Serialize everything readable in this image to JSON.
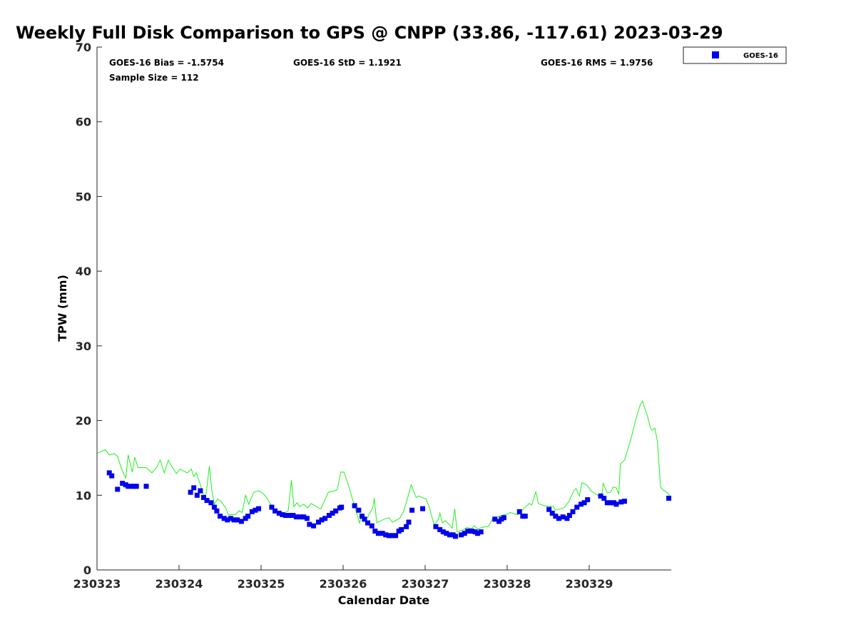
{
  "chart_data": {
    "type": "scatter",
    "title": "Weekly Full Disk Comparison to GPS @ CNPP (33.86, -117.61) 2023-03-29",
    "xlabel": "Calendar Date",
    "ylabel": "TPW (mm)",
    "xlim": [
      0,
      7
    ],
    "ylim": [
      0,
      70
    ],
    "x_unit": "days since 230323",
    "x_ticks": [
      0,
      1,
      2,
      3,
      4,
      5,
      6
    ],
    "x_tick_labels": [
      "230323",
      "230324",
      "230325",
      "230326",
      "230327",
      "230328",
      "230329"
    ],
    "y_ticks": [
      0,
      10,
      20,
      30,
      40,
      50,
      60,
      70
    ],
    "y_tick_labels": [
      "0",
      "10",
      "20",
      "30",
      "40",
      "50",
      "60",
      "70"
    ],
    "grid": false,
    "legend": {
      "position": "top-right-outside",
      "entries": [
        "GOES-16"
      ]
    },
    "stats": {
      "bias": "GOES-16 Bias = -1.5754",
      "std": "GOES-16 StD = 1.1921",
      "rms": "GOES-16 RMS = 1.9756",
      "sample": "Sample Size = 112"
    },
    "series": [
      {
        "name": "GOES-16",
        "type": "scatter",
        "color": "#0000ee",
        "points": [
          [
            0.15,
            13.0
          ],
          [
            0.18,
            12.6
          ],
          [
            0.25,
            10.8
          ],
          [
            0.31,
            11.6
          ],
          [
            0.35,
            11.4
          ],
          [
            0.38,
            11.2
          ],
          [
            0.42,
            11.2
          ],
          [
            0.45,
            11.2
          ],
          [
            0.48,
            11.2
          ],
          [
            0.6,
            11.2
          ],
          [
            1.14,
            10.4
          ],
          [
            1.18,
            11.0
          ],
          [
            1.22,
            10.0
          ],
          [
            1.26,
            10.6
          ],
          [
            1.3,
            9.7
          ],
          [
            1.34,
            9.3
          ],
          [
            1.39,
            9.0
          ],
          [
            1.43,
            8.4
          ],
          [
            1.46,
            7.9
          ],
          [
            1.5,
            7.2
          ],
          [
            1.55,
            6.9
          ],
          [
            1.59,
            6.7
          ],
          [
            1.63,
            6.9
          ],
          [
            1.67,
            6.7
          ],
          [
            1.71,
            6.7
          ],
          [
            1.76,
            6.5
          ],
          [
            1.81,
            6.9
          ],
          [
            1.84,
            7.2
          ],
          [
            1.89,
            7.8
          ],
          [
            1.93,
            8.0
          ],
          [
            1.97,
            8.2
          ],
          [
            2.13,
            8.4
          ],
          [
            2.17,
            7.9
          ],
          [
            2.22,
            7.6
          ],
          [
            2.26,
            7.4
          ],
          [
            2.3,
            7.3
          ],
          [
            2.35,
            7.3
          ],
          [
            2.39,
            7.3
          ],
          [
            2.43,
            7.1
          ],
          [
            2.48,
            7.1
          ],
          [
            2.52,
            7.1
          ],
          [
            2.56,
            6.9
          ],
          [
            2.59,
            6.1
          ],
          [
            2.64,
            5.9
          ],
          [
            2.7,
            6.4
          ],
          [
            2.74,
            6.7
          ],
          [
            2.78,
            6.9
          ],
          [
            2.83,
            7.3
          ],
          [
            2.87,
            7.6
          ],
          [
            2.91,
            7.9
          ],
          [
            2.96,
            8.3
          ],
          [
            2.98,
            8.4
          ],
          [
            3.14,
            8.6
          ],
          [
            3.19,
            8.0
          ],
          [
            3.23,
            7.2
          ],
          [
            3.26,
            6.8
          ],
          [
            3.3,
            6.3
          ],
          [
            3.35,
            5.9
          ],
          [
            3.39,
            5.2
          ],
          [
            3.43,
            4.9
          ],
          [
            3.48,
            4.9
          ],
          [
            3.52,
            4.7
          ],
          [
            3.56,
            4.6
          ],
          [
            3.6,
            4.6
          ],
          [
            3.64,
            4.6
          ],
          [
            3.68,
            5.2
          ],
          [
            3.71,
            5.4
          ],
          [
            3.77,
            5.8
          ],
          [
            3.8,
            6.4
          ],
          [
            3.84,
            8.0
          ],
          [
            3.97,
            8.2
          ],
          [
            4.13,
            5.8
          ],
          [
            4.18,
            5.4
          ],
          [
            4.22,
            5.1
          ],
          [
            4.26,
            4.9
          ],
          [
            4.3,
            4.7
          ],
          [
            4.34,
            4.7
          ],
          [
            4.37,
            4.5
          ],
          [
            4.44,
            4.7
          ],
          [
            4.48,
            4.9
          ],
          [
            4.52,
            5.2
          ],
          [
            4.57,
            5.2
          ],
          [
            4.61,
            5.1
          ],
          [
            4.64,
            4.9
          ],
          [
            4.68,
            5.1
          ],
          [
            4.85,
            6.8
          ],
          [
            4.9,
            6.5
          ],
          [
            4.93,
            6.8
          ],
          [
            4.96,
            7.0
          ],
          [
            5.15,
            7.8
          ],
          [
            5.19,
            7.2
          ],
          [
            5.22,
            7.2
          ],
          [
            5.51,
            8.1
          ],
          [
            5.55,
            7.6
          ],
          [
            5.59,
            7.2
          ],
          [
            5.63,
            6.9
          ],
          [
            5.68,
            7.1
          ],
          [
            5.73,
            6.9
          ],
          [
            5.76,
            7.3
          ],
          [
            5.8,
            7.8
          ],
          [
            5.85,
            8.4
          ],
          [
            5.9,
            8.8
          ],
          [
            5.94,
            9.0
          ],
          [
            5.98,
            9.4
          ],
          [
            6.14,
            9.9
          ],
          [
            6.18,
            9.6
          ],
          [
            6.22,
            9.0
          ],
          [
            6.26,
            9.0
          ],
          [
            6.3,
            9.0
          ],
          [
            6.33,
            8.8
          ],
          [
            6.39,
            9.1
          ],
          [
            6.43,
            9.2
          ],
          [
            6.97,
            9.6
          ]
        ]
      },
      {
        "type": "line",
        "color": "#22ee22",
        "points": [
          [
            0.0,
            15.6
          ],
          [
            0.1,
            16.1
          ],
          [
            0.15,
            15.4
          ],
          [
            0.21,
            15.6
          ],
          [
            0.25,
            15.2
          ],
          [
            0.3,
            13.5
          ],
          [
            0.35,
            12.3
          ],
          [
            0.38,
            15.4
          ],
          [
            0.43,
            13.1
          ],
          [
            0.46,
            15.1
          ],
          [
            0.5,
            13.7
          ],
          [
            0.6,
            13.7
          ],
          [
            0.67,
            13.0
          ],
          [
            0.73,
            13.8
          ],
          [
            0.77,
            14.7
          ],
          [
            0.82,
            13.0
          ],
          [
            0.87,
            14.7
          ],
          [
            0.93,
            13.5
          ],
          [
            0.97,
            12.9
          ],
          [
            1.01,
            13.5
          ],
          [
            1.1,
            13.0
          ],
          [
            1.15,
            13.5
          ],
          [
            1.18,
            12.5
          ],
          [
            1.21,
            13.0
          ],
          [
            1.26,
            11.4
          ],
          [
            1.3,
            9.9
          ],
          [
            1.33,
            10.2
          ],
          [
            1.37,
            13.9
          ],
          [
            1.4,
            10.6
          ],
          [
            1.43,
            8.8
          ],
          [
            1.47,
            9.5
          ],
          [
            1.51,
            9.2
          ],
          [
            1.57,
            8.3
          ],
          [
            1.6,
            7.4
          ],
          [
            1.69,
            7.4
          ],
          [
            1.73,
            7.9
          ],
          [
            1.77,
            7.7
          ],
          [
            1.81,
            10.0
          ],
          [
            1.85,
            8.8
          ],
          [
            1.91,
            10.4
          ],
          [
            1.97,
            10.6
          ],
          [
            2.02,
            10.3
          ],
          [
            2.08,
            9.5
          ],
          [
            2.13,
            8.5
          ],
          [
            2.17,
            7.9
          ],
          [
            2.26,
            7.5
          ],
          [
            2.33,
            7.9
          ],
          [
            2.37,
            12.0
          ],
          [
            2.4,
            8.5
          ],
          [
            2.44,
            9.0
          ],
          [
            2.47,
            8.5
          ],
          [
            2.52,
            8.8
          ],
          [
            2.57,
            8.3
          ],
          [
            2.61,
            8.9
          ],
          [
            2.7,
            8.3
          ],
          [
            2.73,
            8.2
          ],
          [
            2.77,
            9.2
          ],
          [
            2.82,
            10.4
          ],
          [
            2.9,
            10.6
          ],
          [
            2.93,
            10.8
          ],
          [
            2.97,
            13.1
          ],
          [
            3.01,
            13.1
          ],
          [
            3.05,
            11.9
          ],
          [
            3.1,
            10.0
          ],
          [
            3.17,
            7.4
          ],
          [
            3.2,
            6.3
          ],
          [
            3.23,
            7.5
          ],
          [
            3.28,
            6.6
          ],
          [
            3.31,
            7.3
          ],
          [
            3.36,
            8.3
          ],
          [
            3.38,
            9.6
          ],
          [
            3.41,
            6.3
          ],
          [
            3.5,
            6.8
          ],
          [
            3.56,
            7.0
          ],
          [
            3.6,
            6.4
          ],
          [
            3.69,
            6.9
          ],
          [
            3.74,
            7.9
          ],
          [
            3.79,
            9.8
          ],
          [
            3.83,
            11.4
          ],
          [
            3.89,
            9.7
          ],
          [
            3.92,
            9.9
          ],
          [
            4.01,
            9.5
          ],
          [
            4.05,
            8.4
          ],
          [
            4.11,
            6.0
          ],
          [
            4.16,
            6.8
          ],
          [
            4.18,
            7.6
          ],
          [
            4.21,
            6.3
          ],
          [
            4.25,
            6.6
          ],
          [
            4.33,
            5.6
          ],
          [
            4.36,
            8.2
          ],
          [
            4.39,
            5.1
          ],
          [
            4.47,
            5.4
          ],
          [
            4.51,
            5.7
          ],
          [
            4.56,
            5.5
          ],
          [
            4.6,
            5.9
          ],
          [
            4.64,
            5.5
          ],
          [
            4.73,
            5.8
          ],
          [
            4.77,
            5.8
          ],
          [
            4.82,
            6.8
          ],
          [
            4.9,
            7.2
          ],
          [
            5.0,
            7.5
          ],
          [
            5.04,
            7.7
          ],
          [
            5.13,
            7.4
          ],
          [
            5.19,
            8.1
          ],
          [
            5.27,
            8.9
          ],
          [
            5.3,
            8.7
          ],
          [
            5.35,
            10.5
          ],
          [
            5.38,
            8.9
          ],
          [
            5.45,
            8.6
          ],
          [
            5.56,
            8.5
          ],
          [
            5.59,
            8.0
          ],
          [
            5.69,
            8.3
          ],
          [
            5.75,
            9.1
          ],
          [
            5.81,
            10.6
          ],
          [
            5.84,
            10.9
          ],
          [
            5.88,
            9.9
          ],
          [
            5.91,
            11.7
          ],
          [
            5.97,
            11.4
          ],
          [
            6.02,
            10.6
          ],
          [
            6.09,
            10.1
          ],
          [
            6.15,
            9.6
          ],
          [
            6.17,
            11.6
          ],
          [
            6.22,
            10.3
          ],
          [
            6.26,
            10.4
          ],
          [
            6.29,
            11.1
          ],
          [
            6.33,
            11.0
          ],
          [
            6.36,
            10.1
          ],
          [
            6.38,
            14.2
          ],
          [
            6.43,
            14.7
          ],
          [
            6.47,
            16.1
          ],
          [
            6.51,
            17.6
          ],
          [
            6.56,
            19.8
          ],
          [
            6.6,
            21.4
          ],
          [
            6.63,
            22.3
          ],
          [
            6.65,
            22.6
          ],
          [
            6.67,
            21.9
          ],
          [
            6.7,
            20.9
          ],
          [
            6.71,
            20.6
          ],
          [
            6.75,
            18.9
          ],
          [
            6.77,
            18.7
          ],
          [
            6.8,
            19.0
          ],
          [
            6.83,
            17.3
          ],
          [
            6.87,
            11.1
          ],
          [
            6.9,
            10.7
          ],
          [
            6.96,
            10.3
          ],
          [
            6.99,
            9.7
          ]
        ]
      }
    ]
  }
}
